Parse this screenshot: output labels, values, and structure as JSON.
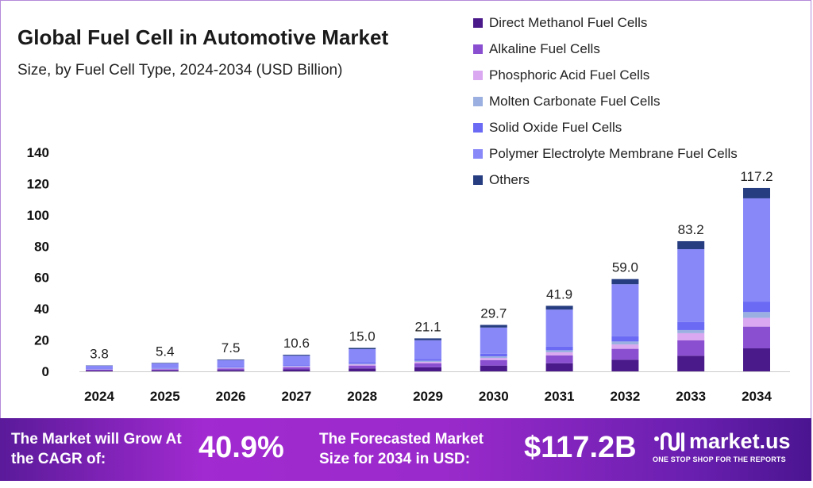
{
  "chart_data": {
    "type": "bar",
    "stacked": true,
    "title": "Global Fuel Cell in Automotive Market",
    "subtitle": "Size, by Fuel Cell Type, 2024-2034 (USD Billion)",
    "categories": [
      "2024",
      "2025",
      "2026",
      "2027",
      "2028",
      "2029",
      "2030",
      "2031",
      "2032",
      "2033",
      "2034"
    ],
    "totals": [
      "3.8",
      "5.4",
      "7.5",
      "10.6",
      "15.0",
      "21.1",
      "29.7",
      "41.9",
      "59.0",
      "83.2",
      "117.2"
    ],
    "ylim": [
      0,
      140
    ],
    "yticks": [
      0,
      20,
      40,
      60,
      80,
      100,
      120,
      140
    ],
    "grid": false,
    "legend_placement": "top-right",
    "series": [
      {
        "name": "Direct Methanol Fuel Cells",
        "color": "#4a1a8a",
        "values": [
          0.5,
          0.7,
          0.9,
          1.3,
          1.9,
          2.6,
          3.7,
          5.2,
          7.4,
          10.0,
          14.7
        ]
      },
      {
        "name": "Alkaline Fuel Cells",
        "color": "#8a4fd0",
        "values": [
          0.5,
          0.6,
          0.9,
          1.3,
          1.8,
          2.5,
          3.5,
          5.0,
          7.0,
          9.8,
          13.9
        ]
      },
      {
        "name": "Phosphoric Acid Fuel Cells",
        "color": "#d9a8f0",
        "values": [
          0.2,
          0.3,
          0.4,
          0.5,
          0.7,
          1.0,
          1.4,
          2.0,
          2.8,
          4.6,
          5.6
        ]
      },
      {
        "name": "Molten Carbonate Fuel Cells",
        "color": "#9bb0e0",
        "values": [
          0.1,
          0.2,
          0.2,
          0.3,
          0.5,
          0.7,
          1.0,
          1.3,
          1.9,
          2.0,
          3.7
        ]
      },
      {
        "name": "Solid Oxide Fuel Cells",
        "color": "#6a6af5",
        "values": [
          0.2,
          0.3,
          0.4,
          0.6,
          0.9,
          1.2,
          1.7,
          2.4,
          3.4,
          5.1,
          6.7
        ]
      },
      {
        "name": "Polymer Electrolyte Membrane Fuel Cells",
        "color": "#8888f8",
        "values": [
          2.1,
          3.0,
          4.3,
          6.0,
          8.4,
          11.9,
          16.7,
          23.6,
          33.2,
          46.6,
          66.0
        ]
      },
      {
        "name": "Others",
        "color": "#263d80",
        "values": [
          0.2,
          0.3,
          0.4,
          0.6,
          0.8,
          1.2,
          1.7,
          2.4,
          3.3,
          5.1,
          6.6
        ]
      }
    ]
  },
  "footer": {
    "cagr_label": "The Market will Grow At the CAGR of:",
    "cagr_value": "40.9%",
    "forecast_label": "The Forecasted Market Size for 2034 in USD:",
    "forecast_value": "$117.2B",
    "brand": "market.us",
    "tagline": "ONE STOP SHOP FOR THE REPORTS"
  }
}
